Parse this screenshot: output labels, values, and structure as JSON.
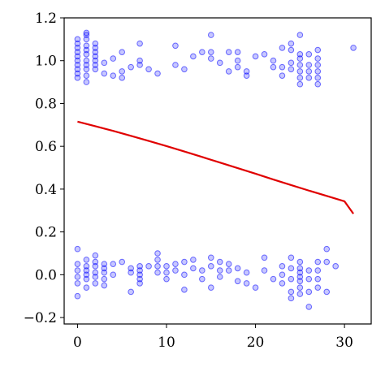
{
  "chart_data": {
    "type": "scatter",
    "title": "",
    "xlabel": "",
    "ylabel": "",
    "xlim": [
      -1.5,
      33
    ],
    "ylim": [
      -0.23,
      1.2
    ],
    "x_ticks": [
      0,
      10,
      20,
      30
    ],
    "y_ticks": [
      -0.2,
      0.0,
      0.2,
      0.4,
      0.6,
      0.8,
      1.0,
      1.2
    ],
    "x_tick_labels": [
      "0",
      "10",
      "20",
      "30"
    ],
    "y_tick_labels": [
      "−0.2",
      "0.0",
      "0.2",
      "0.4",
      "0.6",
      "0.8",
      "1.0",
      "1.2"
    ],
    "grid": false,
    "series": [
      {
        "kind": "scatter",
        "color": "#0000ff",
        "points": [
          [
            0,
            1.1
          ],
          [
            0,
            1.08
          ],
          [
            0,
            1.06
          ],
          [
            0,
            1.04
          ],
          [
            0,
            1.02
          ],
          [
            0,
            1.0
          ],
          [
            0,
            0.98
          ],
          [
            0,
            0.96
          ],
          [
            0,
            0.94
          ],
          [
            0,
            0.92
          ],
          [
            1,
            1.12
          ],
          [
            1,
            1.1
          ],
          [
            1,
            1.07
          ],
          [
            1,
            1.05
          ],
          [
            1,
            1.03
          ],
          [
            1,
            1.0
          ],
          [
            1,
            0.98
          ],
          [
            1,
            0.96
          ],
          [
            1,
            0.93
          ],
          [
            1,
            0.9
          ],
          [
            2,
            1.08
          ],
          [
            2,
            1.06
          ],
          [
            2,
            1.04
          ],
          [
            2,
            1.02
          ],
          [
            2,
            1.0
          ],
          [
            2,
            0.98
          ],
          [
            2,
            0.96
          ],
          [
            1,
            1.13
          ],
          [
            3,
            0.99
          ],
          [
            3,
            0.94
          ],
          [
            4,
            1.01
          ],
          [
            4,
            0.93
          ],
          [
            5,
            1.04
          ],
          [
            5,
            0.95
          ],
          [
            5,
            0.92
          ],
          [
            6,
            0.97
          ],
          [
            7,
            1.08
          ],
          [
            7,
            1.0
          ],
          [
            7,
            0.98
          ],
          [
            8,
            0.96
          ],
          [
            9,
            0.94
          ],
          [
            11,
            1.07
          ],
          [
            11,
            0.98
          ],
          [
            12,
            0.96
          ],
          [
            13,
            1.02
          ],
          [
            14,
            1.04
          ],
          [
            15,
            1.12
          ],
          [
            15,
            1.04
          ],
          [
            15,
            1.01
          ],
          [
            16,
            0.99
          ],
          [
            17,
            1.04
          ],
          [
            17,
            0.95
          ],
          [
            18,
            1.04
          ],
          [
            18,
            1.0
          ],
          [
            18,
            0.97
          ],
          [
            19,
            0.95
          ],
          [
            19,
            0.93
          ],
          [
            20,
            1.02
          ],
          [
            21,
            1.03
          ],
          [
            22,
            1.0
          ],
          [
            22,
            0.97
          ],
          [
            23,
            1.06
          ],
          [
            23,
            0.97
          ],
          [
            23,
            0.93
          ],
          [
            24,
            1.08
          ],
          [
            24,
            1.05
          ],
          [
            24,
            0.99
          ],
          [
            24,
            0.96
          ],
          [
            25,
            1.12
          ],
          [
            25,
            1.03
          ],
          [
            25,
            1.01
          ],
          [
            25,
            0.98
          ],
          [
            25,
            0.95
          ],
          [
            25,
            0.92
          ],
          [
            25,
            0.89
          ],
          [
            26,
            1.03
          ],
          [
            26,
            0.98
          ],
          [
            26,
            0.95
          ],
          [
            26,
            0.92
          ],
          [
            27,
            1.05
          ],
          [
            27,
            1.01
          ],
          [
            27,
            0.98
          ],
          [
            27,
            0.95
          ],
          [
            27,
            0.92
          ],
          [
            27,
            0.89
          ],
          [
            31,
            1.06
          ],
          [
            0,
            0.12
          ],
          [
            0,
            0.05
          ],
          [
            0,
            0.02
          ],
          [
            0,
            -0.01
          ],
          [
            0,
            -0.04
          ],
          [
            0,
            -0.1
          ],
          [
            1,
            0.07
          ],
          [
            1,
            0.04
          ],
          [
            1,
            0.02
          ],
          [
            1,
            0.0
          ],
          [
            1,
            -0.02
          ],
          [
            1,
            -0.06
          ],
          [
            2,
            0.09
          ],
          [
            2,
            0.06
          ],
          [
            2,
            0.04
          ],
          [
            2,
            0.01
          ],
          [
            2,
            -0.01
          ],
          [
            2,
            -0.04
          ],
          [
            3,
            0.05
          ],
          [
            3,
            0.03
          ],
          [
            3,
            0.01
          ],
          [
            3,
            -0.02
          ],
          [
            3,
            -0.05
          ],
          [
            4,
            0.05
          ],
          [
            4,
            0.0
          ],
          [
            5,
            0.06
          ],
          [
            6,
            0.03
          ],
          [
            6,
            0.01
          ],
          [
            6,
            -0.08
          ],
          [
            7,
            0.04
          ],
          [
            7,
            0.02
          ],
          [
            7,
            0.0
          ],
          [
            7,
            -0.02
          ],
          [
            7,
            -0.04
          ],
          [
            8,
            0.04
          ],
          [
            9,
            0.1
          ],
          [
            9,
            0.07
          ],
          [
            9,
            0.04
          ],
          [
            9,
            0.01
          ],
          [
            10,
            0.04
          ],
          [
            10,
            0.01
          ],
          [
            10,
            -0.02
          ],
          [
            11,
            0.05
          ],
          [
            11,
            0.02
          ],
          [
            12,
            0.06
          ],
          [
            12,
            0.0
          ],
          [
            12,
            -0.07
          ],
          [
            13,
            0.07
          ],
          [
            13,
            0.03
          ],
          [
            14,
            0.02
          ],
          [
            14,
            -0.02
          ],
          [
            15,
            0.08
          ],
          [
            15,
            0.04
          ],
          [
            15,
            -0.06
          ],
          [
            16,
            0.06
          ],
          [
            16,
            0.02
          ],
          [
            16,
            -0.01
          ],
          [
            17,
            0.05
          ],
          [
            17,
            0.02
          ],
          [
            18,
            0.03
          ],
          [
            18,
            -0.03
          ],
          [
            19,
            0.01
          ],
          [
            19,
            -0.04
          ],
          [
            20,
            -0.06
          ],
          [
            21,
            0.08
          ],
          [
            21,
            0.02
          ],
          [
            22,
            -0.02
          ],
          [
            23,
            0.04
          ],
          [
            23,
            0.0
          ],
          [
            23,
            -0.04
          ],
          [
            24,
            0.08
          ],
          [
            24,
            0.03
          ],
          [
            24,
            -0.02
          ],
          [
            24,
            -0.08
          ],
          [
            24,
            -0.11
          ],
          [
            25,
            0.06
          ],
          [
            25,
            0.03
          ],
          [
            25,
            0.01
          ],
          [
            25,
            -0.01
          ],
          [
            25,
            -0.03
          ],
          [
            25,
            -0.06
          ],
          [
            25,
            -0.09
          ],
          [
            26,
            0.02
          ],
          [
            26,
            -0.02
          ],
          [
            26,
            -0.08
          ],
          [
            26,
            -0.15
          ],
          [
            27,
            0.06
          ],
          [
            27,
            0.02
          ],
          [
            27,
            -0.02
          ],
          [
            27,
            -0.06
          ],
          [
            28,
            0.12
          ],
          [
            28,
            0.06
          ],
          [
            28,
            -0.08
          ],
          [
            29,
            0.04
          ]
        ]
      },
      {
        "kind": "line",
        "color": "#e00000",
        "x": [
          0,
          2,
          4,
          6,
          8,
          10,
          12,
          14,
          16,
          18,
          20,
          22,
          24,
          26,
          28,
          30,
          31
        ],
        "y": [
          0.715,
          0.694,
          0.672,
          0.649,
          0.625,
          0.601,
          0.576,
          0.55,
          0.524,
          0.498,
          0.472,
          0.445,
          0.419,
          0.393,
          0.368,
          0.343,
          0.285
        ]
      }
    ]
  }
}
